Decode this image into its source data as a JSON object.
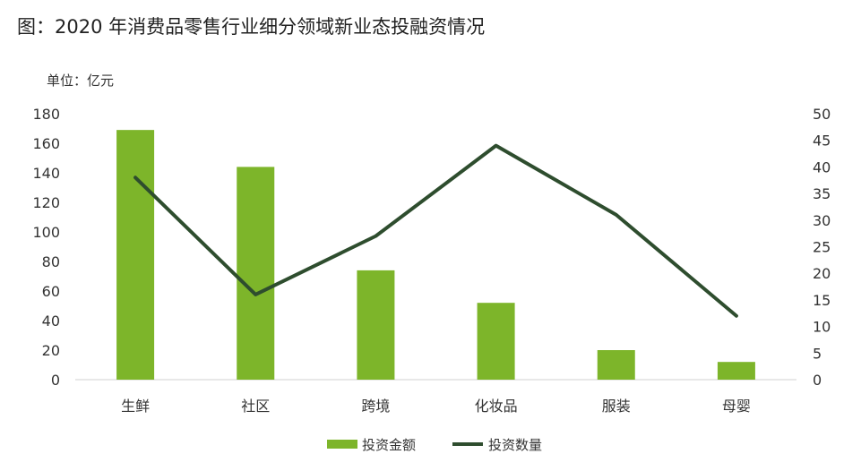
{
  "chart_data": {
    "type": "bar+line",
    "title": "图：2020 年消费品零售行业细分领域新业态投融资情况",
    "unit": "单位：亿元",
    "categories": [
      "生鲜",
      "社区",
      "跨境",
      "化妆品",
      "服装",
      "母婴"
    ],
    "series": [
      {
        "name": "投资金额",
        "type": "bar",
        "axis": "left",
        "values": [
          169,
          144,
          74,
          52,
          20,
          12
        ]
      },
      {
        "name": "投资数量",
        "type": "line",
        "axis": "right",
        "values": [
          38,
          16,
          27,
          44,
          31,
          12
        ]
      }
    ],
    "y_left": {
      "min": 0,
      "max": 180,
      "ticks": [
        0,
        20,
        40,
        60,
        80,
        100,
        120,
        140,
        160,
        180
      ]
    },
    "y_right": {
      "min": 0,
      "max": 50,
      "ticks": [
        0,
        5,
        10,
        15,
        20,
        25,
        30,
        35,
        40,
        45,
        50
      ]
    },
    "legend_position": "bottom",
    "grid": false,
    "colors": {
      "bar": "#7db52a",
      "line": "#2e4d2e"
    }
  }
}
